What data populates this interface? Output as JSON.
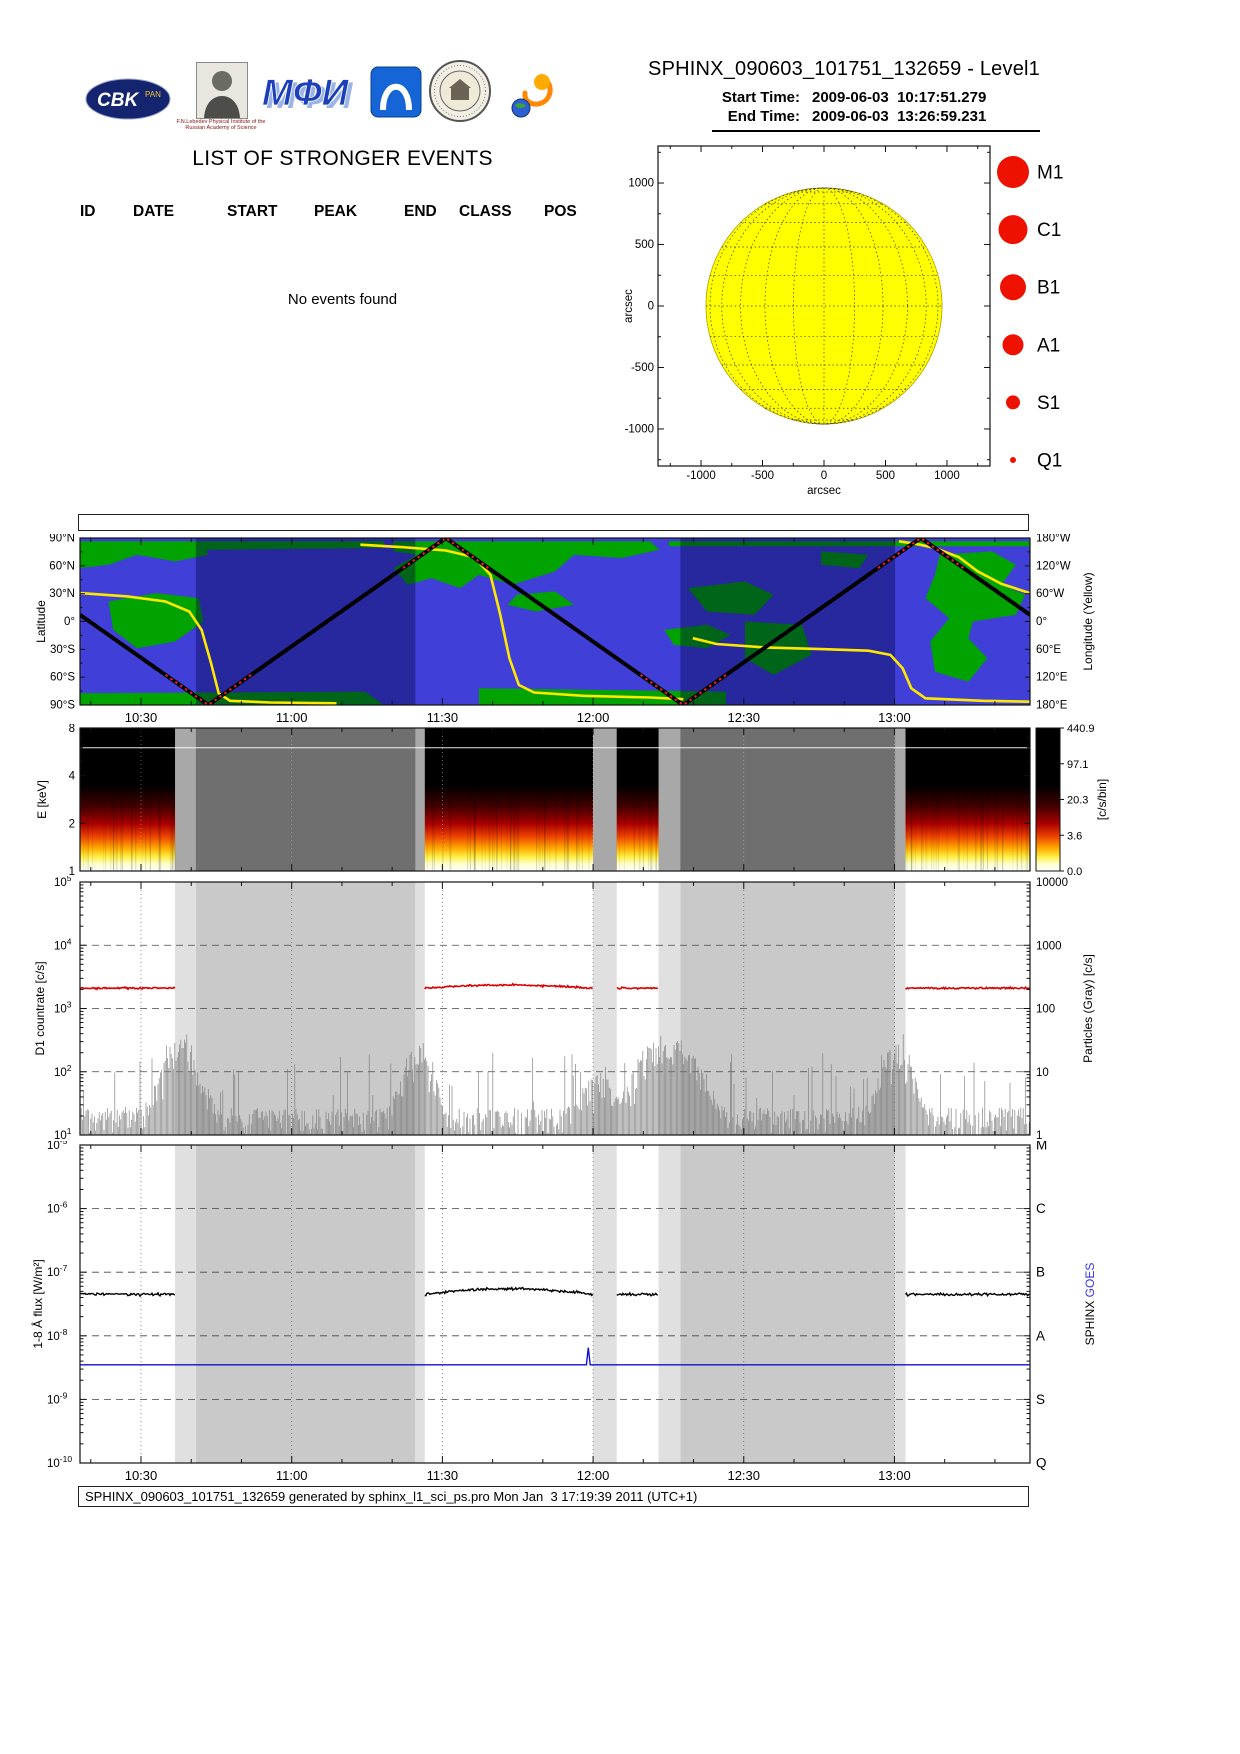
{
  "header": {
    "title": "SPHINX_090603_101751_132659 - Level1",
    "start_label": "Start Time:",
    "start_value": "2009-06-03  10:17:51.279",
    "end_label": "End Time:",
    "end_value": "2009-06-03  13:26:59.231",
    "logos": {
      "cbk_text": "CBK",
      "cbk_sub": "PAN",
      "lebedev_caption": "F.N.Lebedev Physical Institute of the Russian Academy of Science",
      "mephi_text": "МФИ"
    }
  },
  "events": {
    "title": "LIST OF STRONGER EVENTS",
    "columns": [
      "ID",
      "DATE",
      "START",
      "PEAK",
      "END",
      "CLASS",
      "POS"
    ],
    "empty_message": "No events found"
  },
  "legend": {
    "color": "#ee1100",
    "classes": [
      {
        "label": "M1",
        "radius": 16
      },
      {
        "label": "C1",
        "radius": 14.5
      },
      {
        "label": "B1",
        "radius": 13
      },
      {
        "label": "A1",
        "radius": 10.5
      },
      {
        "label": "S1",
        "radius": 7
      },
      {
        "label": "Q1",
        "radius": 3
      }
    ]
  },
  "time_axis": {
    "start_min": 617.8547,
    "end_min": 806.9872,
    "major_tick_labels": [
      "10:30",
      "11:00",
      "11:30",
      "12:00",
      "12:30",
      "13:00"
    ],
    "sun_intervals": [
      [
        0,
        0.1
      ],
      [
        0.363,
        0.54
      ],
      [
        0.565,
        0.609
      ],
      [
        0.869,
        1.0
      ]
    ],
    "transition_intervals": [
      [
        0.1,
        0.122
      ],
      [
        0.353,
        0.363
      ],
      [
        0.54,
        0.565
      ],
      [
        0.609,
        0.632
      ],
      [
        0.858,
        0.869
      ]
    ],
    "night_intervals": [
      [
        0.122,
        0.353
      ],
      [
        0.632,
        0.858
      ]
    ]
  },
  "chart_data": [
    {
      "id": "solar_disk",
      "type": "scatter",
      "xlabel": "arcsec",
      "ylabel": "arcsec",
      "x_ticks": [
        -1000,
        -500,
        0,
        500,
        1000
      ],
      "y_ticks": [
        1000,
        500,
        0,
        -500,
        -1000
      ],
      "axis_range": [
        -1350,
        1350
      ],
      "solar_radius_arcsec": 960,
      "events": []
    },
    {
      "id": "orbit_map",
      "type": "line",
      "left_label": "Latitude",
      "right_label": "Longitude (Yellow)",
      "lat_tick_labels": [
        "90°N",
        "60°N",
        "30°N",
        "0°",
        "30°S",
        "60°S",
        "90°S"
      ],
      "lon_tick_labels": [
        "180°W",
        "120°W",
        "60°W",
        "0°",
        "60°E",
        "120°E",
        "180°E"
      ],
      "orbit_period_frac": 0.5,
      "lat_max_frac": 0.385,
      "series": [
        {
          "name": "ground-track-latitude",
          "color": "#000000",
          "highlat_color": "#e22222"
        },
        {
          "name": "satellite-longitude",
          "color": "#ffe800",
          "segments": [
            [
              [
                0,
                0.33
              ],
              [
                0.05,
                0.35
              ],
              [
                0.09,
                0.38
              ],
              [
                0.115,
                0.44
              ],
              [
                0.128,
                0.55
              ],
              [
                0.138,
                0.75
              ],
              [
                0.146,
                0.93
              ],
              [
                0.158,
                0.975
              ],
              [
                0.2,
                0.985
              ],
              [
                0.27,
                0.99
              ]
            ],
            [
              [
                0.295,
                0.04
              ],
              [
                0.34,
                0.055
              ],
              [
                0.385,
                0.075
              ],
              [
                0.415,
                0.115
              ],
              [
                0.432,
                0.22
              ],
              [
                0.442,
                0.45
              ],
              [
                0.452,
                0.72
              ],
              [
                0.462,
                0.88
              ],
              [
                0.478,
                0.925
              ],
              [
                0.53,
                0.945
              ],
              [
                0.6,
                0.955
              ],
              [
                0.635,
                0.965
              ]
            ],
            [
              [
                0.645,
                0.6
              ],
              [
                0.67,
                0.635
              ],
              [
                0.72,
                0.655
              ],
              [
                0.78,
                0.665
              ],
              [
                0.83,
                0.675
              ],
              [
                0.853,
                0.7
              ],
              [
                0.866,
                0.78
              ],
              [
                0.875,
                0.9
              ],
              [
                0.89,
                0.96
              ],
              [
                0.95,
                0.975
              ],
              [
                1,
                0.98
              ]
            ],
            [
              [
                0.862,
                0.02
              ],
              [
                0.88,
                0.035
              ],
              [
                0.9,
                0.06
              ],
              [
                0.925,
                0.115
              ],
              [
                0.945,
                0.2
              ],
              [
                0.97,
                0.275
              ],
              [
                1,
                0.33
              ]
            ]
          ]
        }
      ]
    },
    {
      "id": "spectrogram",
      "type": "heatmap",
      "ylabel": "E [keV]",
      "y_ticks": [
        8,
        4,
        2,
        1
      ],
      "y_range": [
        1,
        8
      ],
      "colorbar_label": "[c/s/bin]",
      "colorbar_tick_labels": [
        "440.9",
        "97.1",
        "20.3",
        "3.6",
        "0.0"
      ],
      "calibration_line_keV": 6
    },
    {
      "id": "d1_countrate",
      "type": "line",
      "left_label": "D1 countrate [c/s]",
      "right_label": "Particles (Gray) [c/s]",
      "left_exponents": [
        5,
        4,
        3,
        2,
        1
      ],
      "right_tick_labels": [
        "10000",
        "1000",
        "100",
        "10",
        "1"
      ],
      "series": [
        {
          "name": "D1-countrate",
          "color": "#dd0000",
          "mean_cps": 2100
        },
        {
          "name": "particles",
          "color": "#787878",
          "baseline_cps": 12,
          "burst_centers": [
            0.103,
            0.115,
            0.356,
            0.545,
            0.6,
            0.622,
            0.645,
            0.86
          ],
          "burst_amps": [
            260,
            120,
            240,
            90,
            260,
            300,
            140,
            260
          ]
        }
      ]
    },
    {
      "id": "flux",
      "type": "line",
      "left_label": "1-8 Å flux [W/m²]",
      "left_exponents": [
        -5,
        -6,
        -7,
        -8,
        -9,
        -10
      ],
      "class_letters": [
        "M",
        "C",
        "B",
        "A",
        "S",
        "Q"
      ],
      "right_label_black": "SPHINX",
      "right_label_blue": "GOES",
      "series": [
        {
          "name": "SPHINX 1-8 Å flux",
          "color": "#000000",
          "mean_wm2": 4.5e-08
        },
        {
          "name": "GOES 1-8 Å flux",
          "color": "#1111cc",
          "mean_wm2": 3.5e-09,
          "spike_frac": 0.535,
          "spike_wm2": 6.5e-09
        }
      ]
    }
  ],
  "footer": {
    "text": "SPHINX_090603_101751_132659 generated by sphinx_l1_sci_ps.pro Mon Jan  3 17:19:39 2011 (UTC+1)"
  },
  "colors": {
    "sun_yellow": "#ffff00",
    "ocean": "#4040d8",
    "land": "#00a300",
    "night_overlay": "#000040",
    "red": "#dd0000",
    "goes_blue": "#1111cc",
    "spec_night": "#6f6f6f",
    "spec_transition": "#a8a8a8",
    "panel_night": "#c9c9c9",
    "panel_transition": "#e0e0e0"
  }
}
